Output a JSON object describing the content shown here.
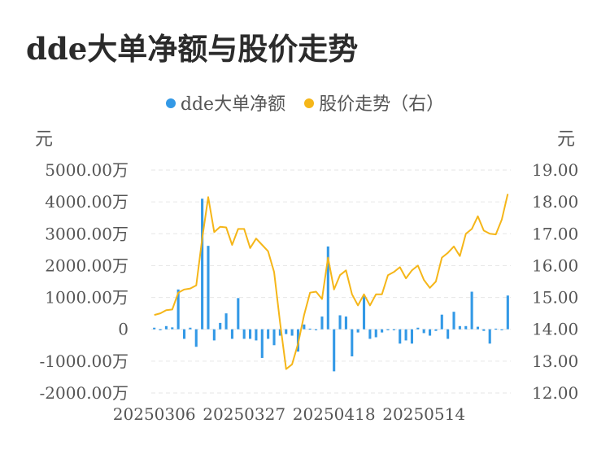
{
  "title": "dde大单净额与股价走势",
  "legend": {
    "items": [
      {
        "label": "dde大单净额",
        "color": "#3399e6"
      },
      {
        "label": "股价走势（右）",
        "color": "#f5b619"
      }
    ]
  },
  "chart_data": {
    "type": "bar+line",
    "left_axis": {
      "unit": "元",
      "ticks": [
        "5000.00万",
        "4000.00万",
        "3000.00万",
        "2000.00万",
        "1000.00万",
        "0",
        "-1000.00万",
        "-2000.00万"
      ],
      "ylim": [
        -2000,
        5000
      ]
    },
    "right_axis": {
      "unit": "元",
      "ticks": [
        "19.00",
        "18.00",
        "17.00",
        "16.00",
        "15.00",
        "14.00",
        "13.00",
        "12.00"
      ],
      "ylim": [
        12,
        19
      ]
    },
    "x_ticks": [
      {
        "label": "20250306",
        "index": 0
      },
      {
        "label": "20250327",
        "index": 15
      },
      {
        "label": "20250418",
        "index": 30
      },
      {
        "label": "20250514",
        "index": 45
      }
    ],
    "grid": true,
    "series": [
      {
        "name": "dde大单净额",
        "type": "bar",
        "color": "#3399e6",
        "values": [
          50,
          -20,
          100,
          60,
          1250,
          -300,
          50,
          -550,
          4100,
          2620,
          -350,
          200,
          500,
          -300,
          980,
          -300,
          -300,
          -350,
          -900,
          -300,
          -500,
          -200,
          -150,
          -200,
          -700,
          150,
          20,
          -30,
          400,
          2600,
          -1320,
          440,
          400,
          -850,
          -100,
          1050,
          -300,
          -250,
          -100,
          -30,
          -30,
          -450,
          -350,
          -450,
          50,
          -120,
          -200,
          -50,
          460,
          -300,
          550,
          100,
          100,
          1180,
          80,
          -50,
          -450,
          20,
          -20,
          1060
        ]
      },
      {
        "name": "股价走势（右）",
        "type": "line",
        "color": "#f5b619",
        "values": [
          14.45,
          14.5,
          14.6,
          14.62,
          15.15,
          15.25,
          15.28,
          15.38,
          16.85,
          18.15,
          17.05,
          17.22,
          17.2,
          16.65,
          17.15,
          17.15,
          16.55,
          16.85,
          16.65,
          16.45,
          15.8,
          14.2,
          12.75,
          12.9,
          13.55,
          14.45,
          15.15,
          15.18,
          14.95,
          16.25,
          15.25,
          15.7,
          15.85,
          15.1,
          14.75,
          15.1,
          14.75,
          15.1,
          15.1,
          15.7,
          15.8,
          15.95,
          15.6,
          15.85,
          16.0,
          15.55,
          15.3,
          15.5,
          16.25,
          16.4,
          16.6,
          16.3,
          17.0,
          17.15,
          17.55,
          17.1,
          17.0,
          16.98,
          17.45,
          18.25
        ]
      }
    ]
  }
}
